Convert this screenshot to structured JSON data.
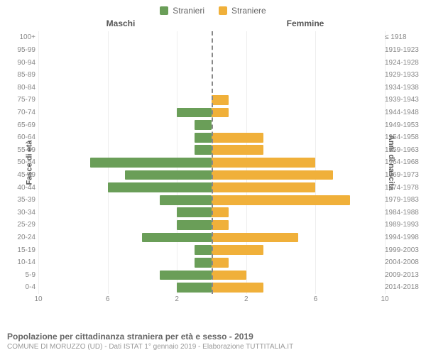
{
  "legend": {
    "male": {
      "label": "Stranieri",
      "color": "#6a9e58"
    },
    "female": {
      "label": "Straniere",
      "color": "#f0b03a"
    }
  },
  "headers": {
    "male": "Maschi",
    "female": "Femmine"
  },
  "axis_titles": {
    "left": "Fasce di età",
    "right": "Anni di nascita"
  },
  "x_axis": {
    "max": 10,
    "ticks": [
      10,
      6,
      2,
      2,
      6,
      10
    ]
  },
  "caption": {
    "line1": "Popolazione per cittadinanza straniera per età e sesso - 2019",
    "line2": "COMUNE DI MORUZZO (UD) - Dati ISTAT 1° gennaio 2019 - Elaborazione TUTTITALIA.IT"
  },
  "colors": {
    "male_bar": "#6a9e58",
    "female_bar": "#f0b03a",
    "grid": "#eeeeee",
    "centerline": "#888888",
    "text_muted": "#888888",
    "background": "#ffffff"
  },
  "chart": {
    "type": "population-pyramid",
    "bar_height_pct": 78,
    "rows": [
      {
        "age": "100+",
        "birth": "≤ 1918",
        "m": 0,
        "f": 0
      },
      {
        "age": "95-99",
        "birth": "1919-1923",
        "m": 0,
        "f": 0
      },
      {
        "age": "90-94",
        "birth": "1924-1928",
        "m": 0,
        "f": 0
      },
      {
        "age": "85-89",
        "birth": "1929-1933",
        "m": 0,
        "f": 0
      },
      {
        "age": "80-84",
        "birth": "1934-1938",
        "m": 0,
        "f": 0
      },
      {
        "age": "75-79",
        "birth": "1939-1943",
        "m": 0,
        "f": 1
      },
      {
        "age": "70-74",
        "birth": "1944-1948",
        "m": 2,
        "f": 1
      },
      {
        "age": "65-69",
        "birth": "1949-1953",
        "m": 1,
        "f": 0
      },
      {
        "age": "60-64",
        "birth": "1954-1958",
        "m": 1,
        "f": 3
      },
      {
        "age": "55-59",
        "birth": "1959-1963",
        "m": 1,
        "f": 3
      },
      {
        "age": "50-54",
        "birth": "1964-1968",
        "m": 7,
        "f": 6
      },
      {
        "age": "45-49",
        "birth": "1969-1973",
        "m": 5,
        "f": 7
      },
      {
        "age": "40-44",
        "birth": "1974-1978",
        "m": 6,
        "f": 6
      },
      {
        "age": "35-39",
        "birth": "1979-1983",
        "m": 3,
        "f": 8
      },
      {
        "age": "30-34",
        "birth": "1984-1988",
        "m": 2,
        "f": 1
      },
      {
        "age": "25-29",
        "birth": "1989-1993",
        "m": 2,
        "f": 1
      },
      {
        "age": "20-24",
        "birth": "1994-1998",
        "m": 4,
        "f": 5
      },
      {
        "age": "15-19",
        "birth": "1999-2003",
        "m": 1,
        "f": 3
      },
      {
        "age": "10-14",
        "birth": "2004-2008",
        "m": 1,
        "f": 1
      },
      {
        "age": "5-9",
        "birth": "2009-2013",
        "m": 3,
        "f": 2
      },
      {
        "age": "0-4",
        "birth": "2014-2018",
        "m": 2,
        "f": 3
      }
    ]
  }
}
